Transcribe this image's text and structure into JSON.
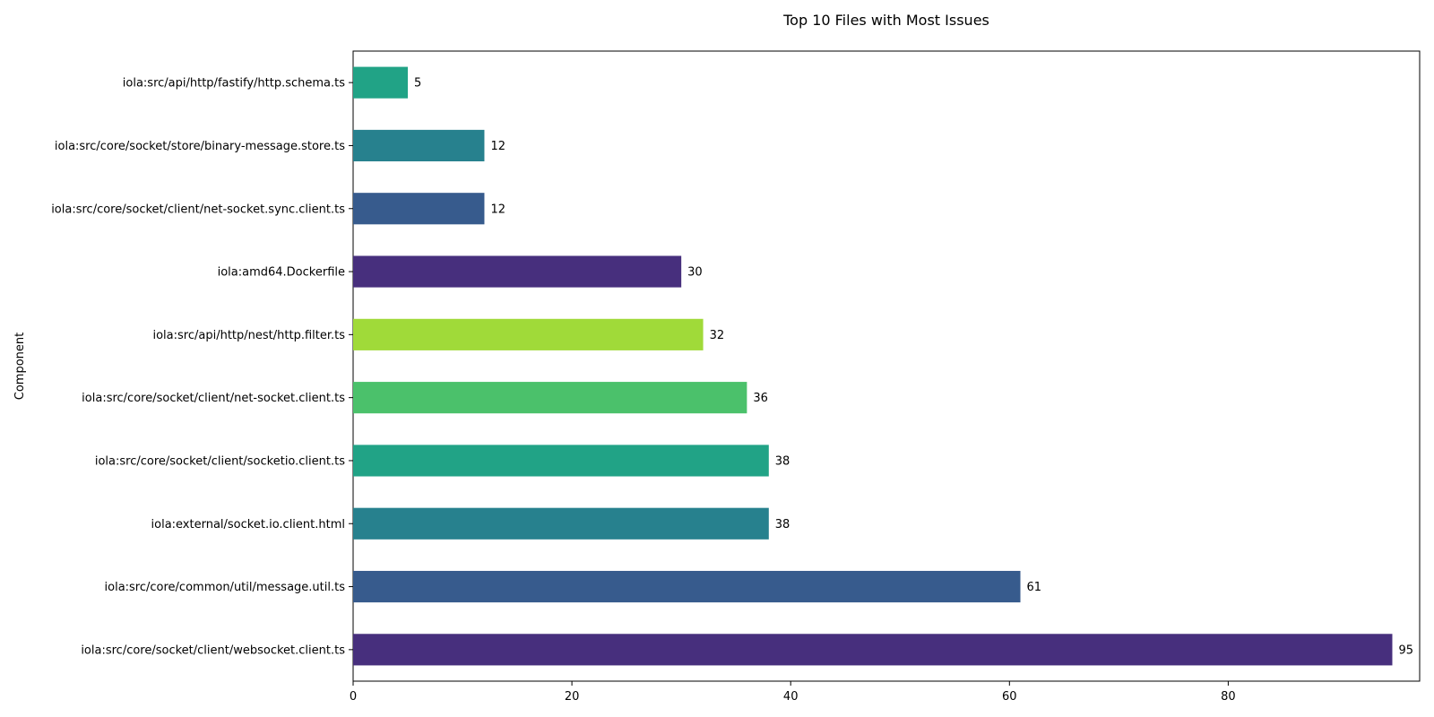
{
  "chart_data": {
    "type": "bar",
    "orientation": "horizontal",
    "title": "Top 10 Files with Most Issues",
    "xlabel": "",
    "ylabel": "Component",
    "xlim": [
      0,
      97.5
    ],
    "xticks": [
      0,
      20,
      40,
      60,
      80
    ],
    "grid": false,
    "legend": "none",
    "categories": [
      "iola:src/core/socket/client/websocket.client.ts",
      "iola:src/core/common/util/message.util.ts",
      "iola:external/socket.io.client.html",
      "iola:src/core/socket/client/socketio.client.ts",
      "iola:src/core/socket/client/net-socket.client.ts",
      "iola:src/api/http/nest/http.filter.ts",
      "iola:amd64.Dockerfile",
      "iola:src/core/socket/client/net-socket.sync.client.ts",
      "iola:src/core/socket/store/binary-message.store.ts",
      "iola:src/api/http/fastify/http.schema.ts"
    ],
    "values": [
      95,
      61,
      38,
      38,
      36,
      32,
      30,
      12,
      12,
      5
    ],
    "colors": [
      "#472f7d",
      "#375b8d",
      "#27818e",
      "#21a386",
      "#4bc16b",
      "#a0da39",
      "#472f7d",
      "#375b8d",
      "#27818e",
      "#21a386"
    ]
  }
}
